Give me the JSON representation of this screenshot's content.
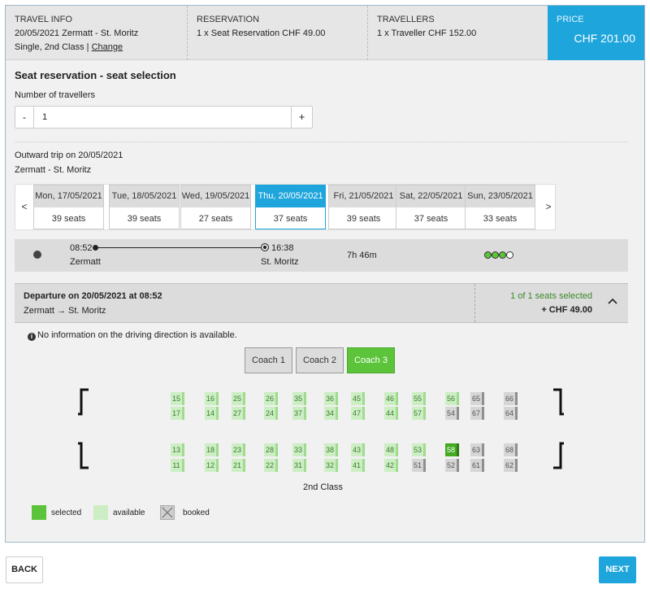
{
  "header": {
    "travel_info": {
      "caption": "TRAVEL INFO",
      "line1": "20/05/2021 Zermatt - St. Moritz",
      "line2": "Single, 2nd Class |",
      "change": "Change"
    },
    "reservation": {
      "caption": "RESERVATION",
      "line1": "1 x Seat Reservation CHF 49.00"
    },
    "travellers": {
      "caption": "TRAVELLERS",
      "line1": "1 x Traveller CHF 152.00"
    },
    "price": {
      "caption": "PRICE",
      "value": "CHF 201.00"
    }
  },
  "section_title": "Seat reservation - seat selection",
  "travellers_label": "Number of travellers",
  "stepper": {
    "minus": "-",
    "value": "1",
    "plus": "+"
  },
  "outward": {
    "title": "Outward trip on 20/05/2021",
    "route": "Zermatt - St. Moritz"
  },
  "days": {
    "prev": "<",
    "next": ">",
    "items": [
      {
        "date": "Mon, 17/05/2021",
        "seats": "39 seats"
      },
      {
        "date": "Tue, 18/05/2021",
        "seats": "39 seats"
      },
      {
        "date": "Wed, 19/05/2021",
        "seats": "27 seats"
      },
      {
        "date": "Thu, 20/05/2021",
        "seats": "37 seats"
      },
      {
        "date": "Fri, 21/05/2021",
        "seats": "39 seats"
      },
      {
        "date": "Sat, 22/05/2021",
        "seats": "37 seats"
      },
      {
        "date": "Sun, 23/05/2021",
        "seats": "33 seats"
      }
    ]
  },
  "journey": {
    "dep_time": "08:52",
    "dep_station": "Zermatt",
    "arr_time": "16:38",
    "arr_station": "St. Moritz",
    "duration": "7h 46m",
    "occupancy_filled": 3,
    "occupancy_total": 4
  },
  "departure": {
    "title": "Departure on 20/05/2021 at 08:52",
    "route": "Zermatt → St. Moritz",
    "selected": "1 of 1 seats selected",
    "price": "+ CHF 49.00"
  },
  "info_text": "No information on the driving direction is available.",
  "coaches": [
    "Coach 1",
    "Coach 2",
    "Coach 3"
  ],
  "seats": {
    "row1": [
      [
        "15",
        "av"
      ],
      [
        "16",
        "av"
      ],
      [
        "25",
        "av"
      ],
      [
        "26",
        "av"
      ],
      [
        "35",
        "av"
      ],
      [
        "36",
        "av"
      ],
      [
        "45",
        "av"
      ],
      [
        "46",
        "av"
      ],
      [
        "55",
        "av"
      ],
      [
        "56",
        "av"
      ],
      [
        "65",
        "bk"
      ],
      [
        "66",
        "bk"
      ]
    ],
    "row2": [
      [
        "17",
        "av"
      ],
      [
        "14",
        "av"
      ],
      [
        "27",
        "av"
      ],
      [
        "24",
        "av"
      ],
      [
        "37",
        "av"
      ],
      [
        "34",
        "av"
      ],
      [
        "47",
        "av"
      ],
      [
        "44",
        "av"
      ],
      [
        "57",
        "av"
      ],
      [
        "54",
        "bk"
      ],
      [
        "67",
        "bk"
      ],
      [
        "64",
        "bk"
      ]
    ],
    "row3": [
      [
        "13",
        "av"
      ],
      [
        "18",
        "av"
      ],
      [
        "23",
        "av"
      ],
      [
        "28",
        "av"
      ],
      [
        "33",
        "av"
      ],
      [
        "38",
        "av"
      ],
      [
        "43",
        "av"
      ],
      [
        "48",
        "av"
      ],
      [
        "53",
        "av"
      ],
      [
        "58",
        "sl"
      ],
      [
        "63",
        "bk"
      ],
      [
        "68",
        "bk"
      ]
    ],
    "row4": [
      [
        "11",
        "av"
      ],
      [
        "12",
        "av"
      ],
      [
        "21",
        "av"
      ],
      [
        "22",
        "av"
      ],
      [
        "31",
        "av"
      ],
      [
        "32",
        "av"
      ],
      [
        "41",
        "av"
      ],
      [
        "42",
        "av"
      ],
      [
        "51",
        "bk"
      ],
      [
        "52",
        "bk"
      ],
      [
        "61",
        "bk"
      ],
      [
        "62",
        "bk"
      ]
    ]
  },
  "class_label": "2nd Class",
  "legend": {
    "selected": "selected",
    "available": "available",
    "booked": "booked"
  },
  "buttons": {
    "back": "BACK",
    "next": "NEXT"
  },
  "colors": {
    "accent": "#1ea5dc",
    "selected": "#5cc43a",
    "available": "#cdeec5",
    "booked": "#d6d6d6"
  }
}
